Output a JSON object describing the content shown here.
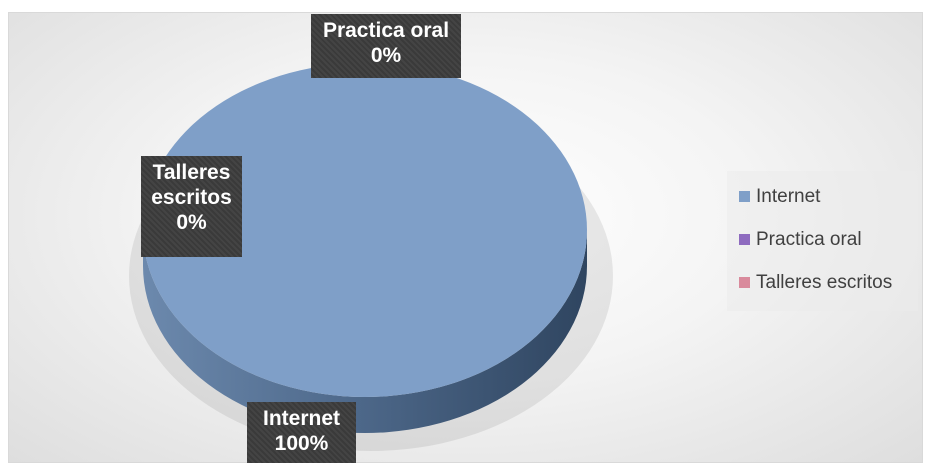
{
  "chart_data": {
    "type": "pie",
    "title": "",
    "three_d": true,
    "slices": [
      {
        "name": "Internet",
        "value": 100,
        "label_name": "Internet",
        "label_value": "100%",
        "color": "#7f9fc8"
      },
      {
        "name": "Practica oral",
        "value": 0,
        "label_name": "Practica oral",
        "label_value": "0%",
        "color": "#8e6bbf"
      },
      {
        "name": "Talleres escritos",
        "value": 0,
        "label_name": "Talleres escritos",
        "label_value": "0%",
        "color": "#d98a9c"
      }
    ],
    "legend": {
      "placement": "right",
      "entries": [
        "Internet",
        "Practica oral",
        "Talleres escritos"
      ]
    }
  }
}
